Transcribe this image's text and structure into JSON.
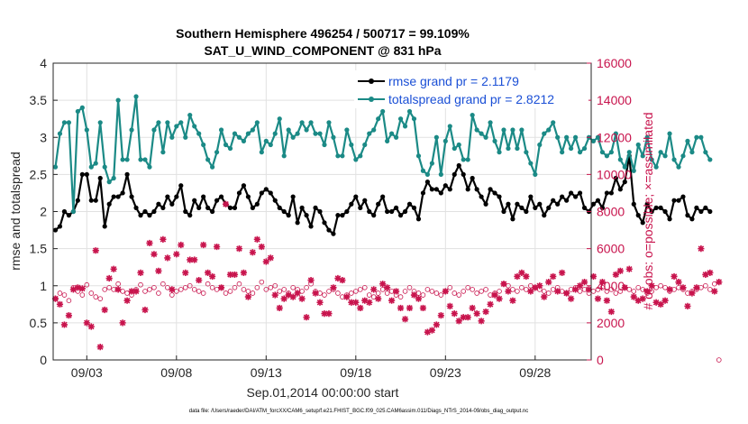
{
  "chart_data": {
    "type": "line",
    "title": "Southern Hemisphere 496254 / 500717 = 99.109%",
    "subtitle": "SAT_U_WIND_COMPONENT @ 831 hPa",
    "xlabel": "Sep.01,2014 00:00:00 start",
    "ylabel": "rmse and totalspread",
    "ylabel_right": "# of obs: o=possible; ×=assimilated",
    "footnote": "data file: /Users/raeder/DAI/ATM_forcXX/CAM6_setup/f.e21.FHIST_BGC.f09_025.CAM6assim.011/Diags_NTrS_2014-09/obs_diag_output.nc",
    "x_start_day": 1.25,
    "x_step_days": 0.25,
    "xlim": [
      1.125,
      31.125
    ],
    "ylim": [
      0,
      4
    ],
    "ylim_right": [
      0,
      16000
    ],
    "x_tick_days": [
      3,
      8,
      13,
      18,
      23,
      28
    ],
    "x_tick_labels": [
      "09/03",
      "09/08",
      "09/13",
      "09/18",
      "09/23",
      "09/28"
    ],
    "y_ticks": [
      "0",
      "0.5",
      "1",
      "1.5",
      "2",
      "2.5",
      "3",
      "3.5",
      "4"
    ],
    "y_ticks_right": [
      "0",
      "2000",
      "4000",
      "6000",
      "8000",
      "10000",
      "12000",
      "14000",
      "16000"
    ],
    "grid": true,
    "legend_position": "top-right",
    "series": [
      {
        "name": "rmse",
        "legend": "rmse grand pr = 2.1179",
        "color": "#000000",
        "axis": "left",
        "values": [
          1.75,
          1.8,
          2.0,
          1.95,
          2.0,
          2.15,
          2.5,
          2.5,
          2.15,
          2.15,
          2.45,
          1.8,
          2.1,
          2.2,
          2.2,
          2.25,
          2.5,
          2.2,
          2.05,
          1.95,
          2.0,
          1.95,
          2.0,
          2.1,
          2.05,
          2.2,
          2.1,
          2.2,
          2.35,
          2.0,
          1.95,
          2.15,
          2.05,
          2.2,
          2.05,
          2.0,
          2.15,
          2.2,
          2.1,
          2.05,
          2.05,
          2.25,
          2.35,
          2.2,
          2.05,
          2.1,
          2.25,
          2.3,
          2.25,
          2.15,
          2.05,
          2.0,
          1.95,
          2.2,
          1.85,
          2.05,
          1.95,
          1.8,
          2.05,
          2.0,
          1.85,
          1.75,
          1.7,
          1.95,
          1.95,
          2.0,
          2.1,
          2.2,
          2.05,
          2.15,
          2.0,
          1.95,
          2.1,
          2.2,
          2.0,
          2.0,
          2.05,
          1.95,
          2.0,
          2.1,
          2.05,
          1.9,
          2.25,
          2.4,
          2.3,
          2.3,
          2.25,
          2.35,
          2.3,
          2.5,
          2.62,
          2.5,
          2.3,
          2.45,
          2.3,
          2.2,
          2.1,
          2.3,
          2.25,
          2.2,
          2.0,
          2.1,
          1.9,
          2.1,
          2.05,
          2.0,
          2.2,
          2.05,
          2.1,
          1.95,
          2.05,
          2.15,
          2.1,
          2.2,
          2.15,
          2.25,
          2.2,
          2.25,
          2.05,
          2.0,
          2.1,
          2.15,
          2.05,
          2.25,
          2.25,
          2.45,
          2.3,
          2.4,
          2.75,
          2.1,
          1.95,
          1.85,
          2.1,
          2.0,
          2.05,
          2.05,
          2.0,
          1.9,
          2.15,
          2.15,
          2.2,
          1.95,
          1.9,
          2.05,
          2.0,
          2.05,
          2.0
        ]
      },
      {
        "name": "totalspread",
        "legend": "totalspread grand pr = 2.8212",
        "color": "#1b8a86",
        "axis": "left",
        "values": [
          2.6,
          3.05,
          3.2,
          3.2,
          2.0,
          3.35,
          3.4,
          3.1,
          2.6,
          2.65,
          3.2,
          2.6,
          2.4,
          2.45,
          3.5,
          2.7,
          2.7,
          3.1,
          3.55,
          2.7,
          2.7,
          2.6,
          3.1,
          3.2,
          2.8,
          3.2,
          3.0,
          3.15,
          3.2,
          3.0,
          3.3,
          3.15,
          3.05,
          2.9,
          2.7,
          2.6,
          2.8,
          3.1,
          2.9,
          2.85,
          3.05,
          3.0,
          2.95,
          3.05,
          3.1,
          3.2,
          2.8,
          2.95,
          2.9,
          3.05,
          3.25,
          2.75,
          3.1,
          3.0,
          3.05,
          3.2,
          3.1,
          3.2,
          3.05,
          3.05,
          2.9,
          3.2,
          3.0,
          2.75,
          2.75,
          3.1,
          2.9,
          2.7,
          2.75,
          2.9,
          3.05,
          3.1,
          3.25,
          3.35,
          2.95,
          3.05,
          3.0,
          3.25,
          3.15,
          3.35,
          3.25,
          2.75,
          2.55,
          2.5,
          2.65,
          3.0,
          2.5,
          2.95,
          3.15,
          2.85,
          2.9,
          2.7,
          2.7,
          3.3,
          3.1,
          3.05,
          3.0,
          3.2,
          2.95,
          2.8,
          3.1,
          2.85,
          3.1,
          2.85,
          3.1,
          2.8,
          2.65,
          2.5,
          2.9,
          3.05,
          3.1,
          3.2,
          3.0,
          2.8,
          3.0,
          2.85,
          3.0,
          2.8,
          2.85,
          3.0,
          2.95,
          3.0,
          2.8,
          2.75,
          2.8,
          3.05,
          2.7,
          2.6,
          2.8,
          2.55,
          2.9,
          2.75,
          3.0,
          2.7,
          2.6,
          2.8,
          2.75,
          3.05,
          2.7,
          2.6,
          2.75,
          2.95,
          2.8,
          3.0,
          3.0,
          2.8,
          2.7
        ]
      },
      {
        "name": "obs_possible",
        "legend": "",
        "color": "#c8144d",
        "axis": "right",
        "marker": "o",
        "values": [
          3300,
          3600,
          3500,
          3200,
          3900,
          3700,
          3500,
          4050,
          3600,
          3400,
          3300,
          3800,
          3900,
          3800,
          4100,
          3700,
          3600,
          3500,
          3800,
          4050,
          3700,
          3800,
          3900,
          3600,
          4100,
          3900,
          3500,
          3700,
          3800,
          3900,
          4000,
          3800,
          3700,
          3600,
          4100,
          3900,
          3800,
          3900,
          3600,
          3700,
          3900,
          4100,
          3800,
          3700,
          3600,
          3900,
          4200,
          3800,
          3900,
          4000,
          3700,
          3800,
          3600,
          3900,
          3800,
          3700,
          3900,
          4100,
          3700,
          3600,
          3500,
          3700,
          3800,
          3600,
          3400,
          3500,
          3600,
          3700,
          3800,
          3900,
          3500,
          3400,
          3600,
          3800,
          3600,
          3700,
          3500,
          3400,
          3700,
          3900,
          3700,
          3600,
          3500,
          3800,
          3700,
          3600,
          3500,
          3700,
          3900,
          3600,
          3500,
          3700,
          3900,
          3800,
          3600,
          3700,
          3800,
          3500,
          3600,
          3700,
          4100,
          4000,
          3800,
          3700,
          3900,
          3800,
          4000,
          3900,
          3800,
          3700,
          3600,
          3800,
          3900,
          3700,
          3600,
          3800,
          3900,
          3700,
          3800,
          3600,
          3700,
          3800,
          3900,
          3700,
          3800,
          3600,
          3700,
          3900,
          3800,
          3700,
          3900,
          3800,
          3600,
          3700,
          3900,
          4000,
          3900,
          3700,
          3800,
          3900,
          3800,
          3600,
          3700,
          3800,
          3900,
          4000,
          3800,
          4100,
          0
        ]
      },
      {
        "name": "obs_assimilated",
        "legend": "",
        "color": "#c8144d",
        "axis": "right",
        "marker": "x",
        "values": [
          3300,
          3000,
          1900,
          2400,
          3800,
          3900,
          3850,
          2000,
          1800,
          5900,
          700,
          2700,
          4400,
          4900,
          3800,
          2000,
          3200,
          3700,
          3700,
          4700,
          2700,
          6300,
          5700,
          4800,
          6500,
          5500,
          3800,
          5700,
          6200,
          4700,
          5400,
          5400,
          4300,
          6200,
          4700,
          4500,
          6100,
          3900,
          8400,
          4600,
          4600,
          6000,
          4700,
          3400,
          5800,
          6500,
          6100,
          5300,
          5500,
          3500,
          2800,
          3300,
          3500,
          3400,
          3600,
          3300,
          2300,
          4300,
          3600,
          3100,
          2500,
          2500,
          3900,
          4400,
          4300,
          3400,
          3100,
          3100,
          2800,
          3200,
          3100,
          3800,
          3300,
          4100,
          3900,
          3200,
          3700,
          2800,
          2200,
          2800,
          3500,
          3300,
          2800,
          1500,
          1600,
          1900,
          2400,
          3700,
          2900,
          2500,
          2100,
          2300,
          2300,
          2800,
          2500,
          2100,
          2600,
          3000,
          3500,
          3300,
          4100,
          3700,
          3200,
          4500,
          4700,
          4500,
          3700,
          3900,
          4000,
          3400,
          4200,
          4500,
          3700,
          4700,
          3600,
          3300,
          3800,
          4000,
          4200,
          3800,
          4500,
          3300,
          4200,
          3200,
          2600,
          4600,
          4800,
          3900,
          4900,
          3400,
          3200,
          3300,
          3700,
          4000,
          3100,
          3000,
          3200,
          3800,
          4500,
          4200,
          3900,
          2900,
          3600,
          3900,
          6000,
          4600,
          4700,
          3700,
          4200
        ]
      }
    ]
  }
}
